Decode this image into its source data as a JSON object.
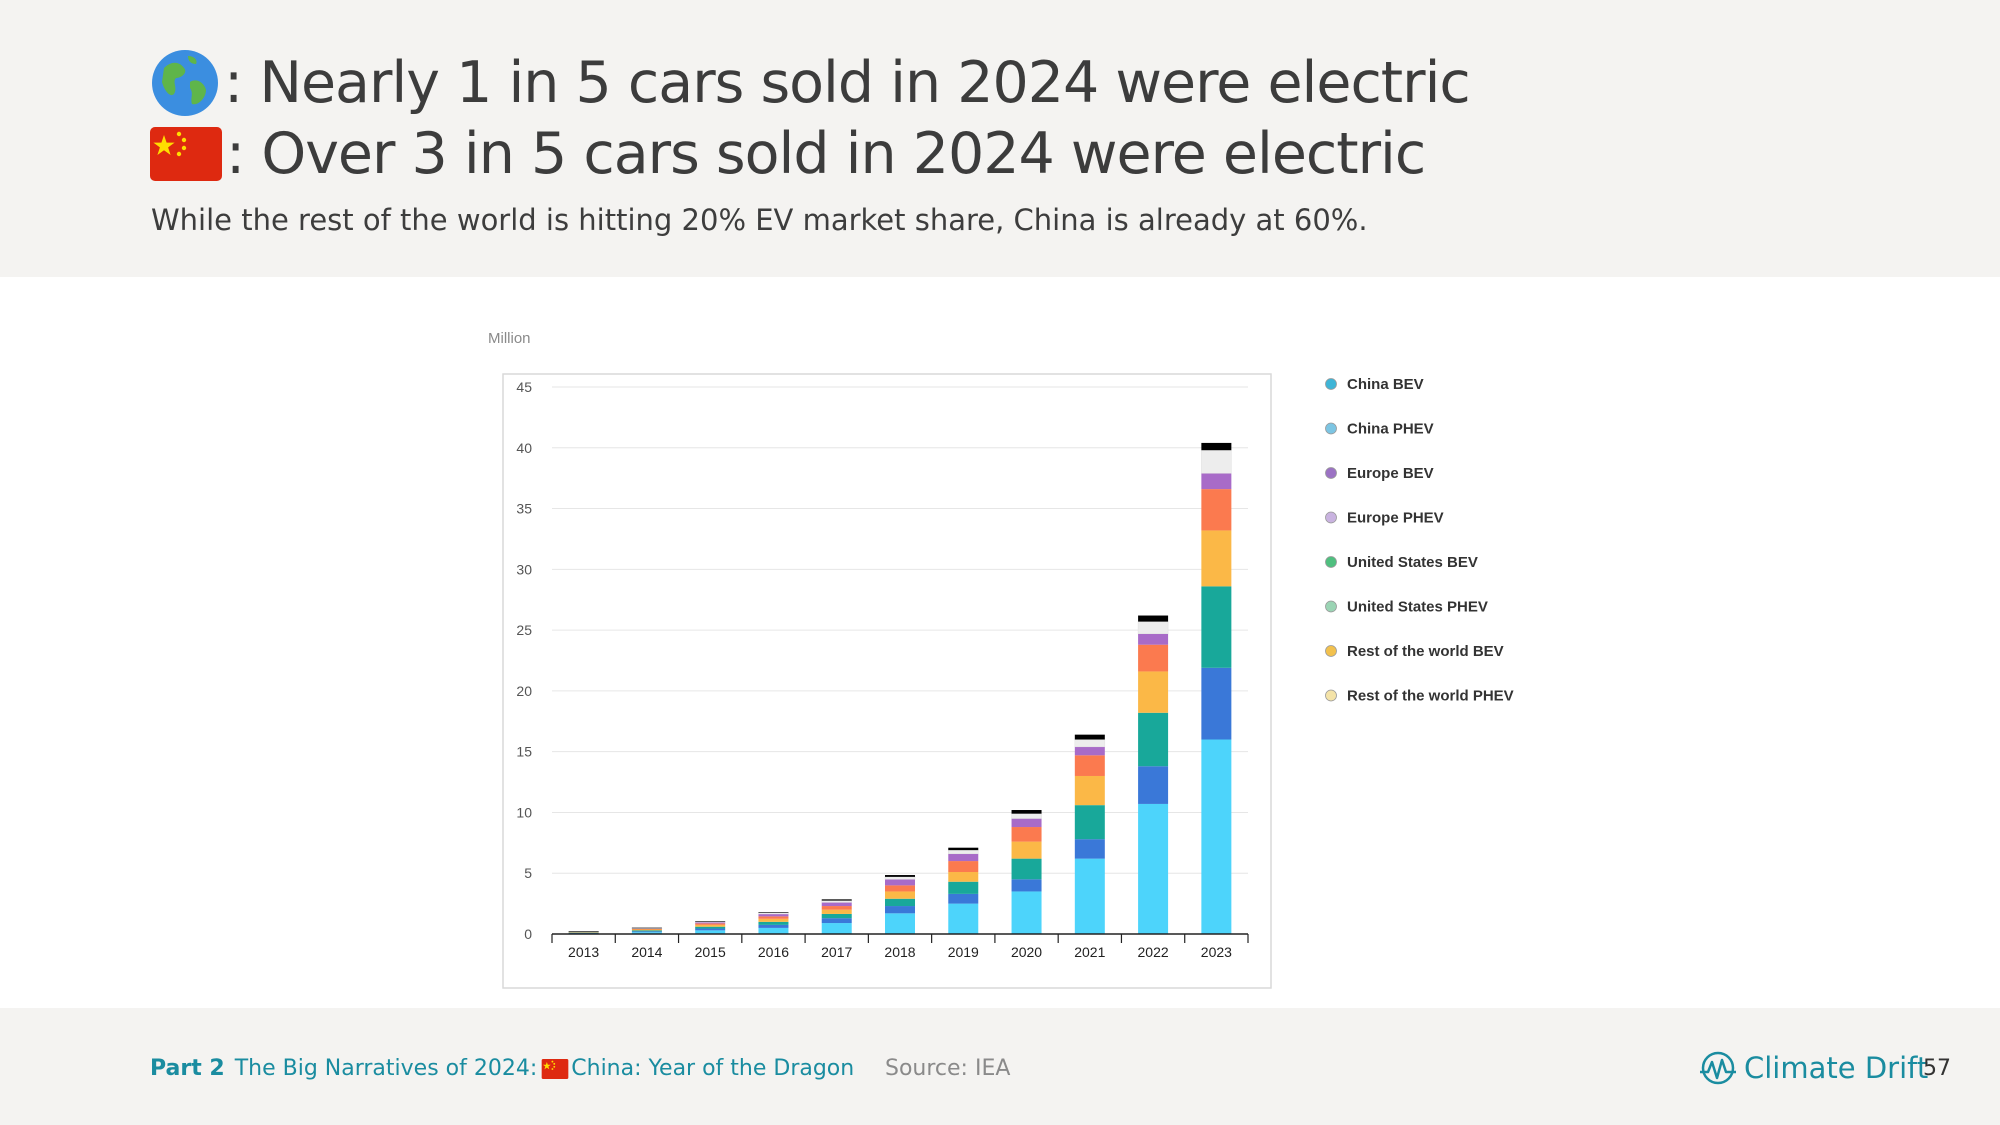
{
  "header": {
    "line1": ": Nearly 1 in 5 cars sold in 2024 were electric",
    "line2": ": Over 3 in 5 cars sold in 2024 were electric",
    "subtitle": "While the rest of the world is hitting 20% EV market share, China is already at 60%."
  },
  "footer": {
    "part_label": "Part 2",
    "part_title": "The Big Narratives of 2024:",
    "part_sub": "China: Year of the Dragon",
    "source": "Source: IEA",
    "brand": "Climate Drift",
    "page": "57"
  },
  "chart_data": {
    "type": "bar",
    "stacked": true,
    "ylabel": "Million",
    "ylim": [
      0,
      45
    ],
    "yticks": [
      0,
      5,
      10,
      15,
      20,
      25,
      30,
      35,
      40,
      45
    ],
    "grid": true,
    "legend_position": "right",
    "categories": [
      "2013",
      "2014",
      "2015",
      "2016",
      "2017",
      "2018",
      "2019",
      "2020",
      "2021",
      "2022",
      "2023"
    ],
    "series": [
      {
        "name": "China BEV",
        "color": "#4dd4fb",
        "values": [
          0.05,
          0.15,
          0.3,
          0.5,
          0.9,
          1.7,
          2.5,
          3.5,
          6.2,
          10.7,
          16.0
        ]
      },
      {
        "name": "China PHEV",
        "color": "#3a78d8",
        "values": [
          0.03,
          0.07,
          0.15,
          0.25,
          0.4,
          0.6,
          0.8,
          1.0,
          1.6,
          3.1,
          5.9
        ]
      },
      {
        "name": "Europe BEV",
        "color": "#18a89a",
        "values": [
          0.04,
          0.08,
          0.15,
          0.25,
          0.35,
          0.6,
          1.0,
          1.7,
          2.8,
          4.4,
          6.7
        ]
      },
      {
        "name": "Europe PHEV",
        "color": "#fbb847",
        "values": [
          0.04,
          0.07,
          0.15,
          0.25,
          0.35,
          0.6,
          0.8,
          1.4,
          2.4,
          3.4,
          4.6
        ]
      },
      {
        "name": "United States BEV",
        "color": "#fb7a4f",
        "values": [
          0.03,
          0.06,
          0.12,
          0.2,
          0.3,
          0.5,
          0.9,
          1.2,
          1.7,
          2.2,
          3.4
        ]
      },
      {
        "name": "United States PHEV",
        "color": "#a86bc8",
        "values": [
          0.02,
          0.05,
          0.1,
          0.2,
          0.3,
          0.5,
          0.6,
          0.7,
          0.7,
          0.9,
          1.3
        ]
      },
      {
        "name": "Rest of the world BEV",
        "color": "#ededed",
        "values": [
          0.01,
          0.02,
          0.05,
          0.1,
          0.15,
          0.2,
          0.3,
          0.4,
          0.6,
          1.0,
          1.9
        ]
      },
      {
        "name": "Rest of the world PHEV",
        "color": "#000000",
        "values": [
          0.01,
          0.02,
          0.03,
          0.05,
          0.1,
          0.15,
          0.2,
          0.3,
          0.4,
          0.5,
          0.6
        ]
      }
    ],
    "legend": [
      {
        "label": "China BEV",
        "dot": "#3fb4d6"
      },
      {
        "label": "China PHEV",
        "dot": "#7cc5e3"
      },
      {
        "label": "Europe BEV",
        "dot": "#9b72c3"
      },
      {
        "label": "Europe PHEV",
        "dot": "#c9b3e0"
      },
      {
        "label": "United States BEV",
        "dot": "#4fbf7f"
      },
      {
        "label": "United States PHEV",
        "dot": "#9bd4b4"
      },
      {
        "label": "Rest of the world BEV",
        "dot": "#f2c14e"
      },
      {
        "label": "Rest of the world PHEV",
        "dot": "#f4e3a8"
      }
    ]
  }
}
